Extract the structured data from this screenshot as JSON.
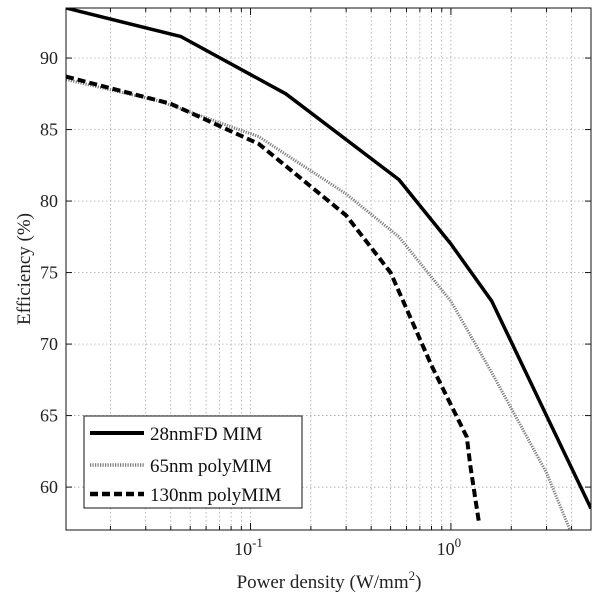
{
  "chart_data": {
    "type": "line",
    "xlabel": "Power density (W/mm",
    "xlabel_superscript": "2",
    "xlabel_close": ")",
    "ylabel": "Efficiency (%)",
    "x_scale": "log",
    "xlim": [
      0.012,
      5.0
    ],
    "ylim": [
      57,
      93.5
    ],
    "grid": true,
    "legend_position": "bottom-left",
    "y_ticks": [
      60,
      65,
      70,
      75,
      80,
      85,
      90
    ],
    "x_ticks": [
      {
        "value": 0.1,
        "base": "10",
        "exp": "-1"
      },
      {
        "value": 1,
        "base": "10",
        "exp": "0"
      }
    ],
    "series": [
      {
        "name": "28nmFD MIM",
        "style": "solid",
        "color": "#000000",
        "x": [
          0.012,
          0.045,
          0.15,
          0.55,
          1.0,
          1.6,
          3.0,
          5.0
        ],
        "y": [
          93.5,
          91.5,
          87.5,
          81.5,
          77.0,
          73.0,
          65.0,
          58.5
        ]
      },
      {
        "name": "65nm polyMIM",
        "style": "dotted",
        "color": "#7a7a7a",
        "x": [
          0.012,
          0.035,
          0.11,
          0.3,
          0.55,
          1.0,
          1.6,
          3.0,
          4.5
        ],
        "y": [
          88.5,
          87.0,
          84.5,
          80.5,
          77.5,
          73.0,
          68.0,
          61.0,
          55.0
        ]
      },
      {
        "name": "130nm polyMIM",
        "style": "dashed",
        "color": "#000000",
        "x": [
          0.012,
          0.04,
          0.11,
          0.3,
          0.5,
          0.8,
          1.2,
          1.25,
          1.38
        ],
        "y": [
          88.7,
          86.8,
          84.0,
          79.0,
          75.0,
          68.5,
          63.5,
          61.5,
          57.5
        ]
      }
    ]
  }
}
